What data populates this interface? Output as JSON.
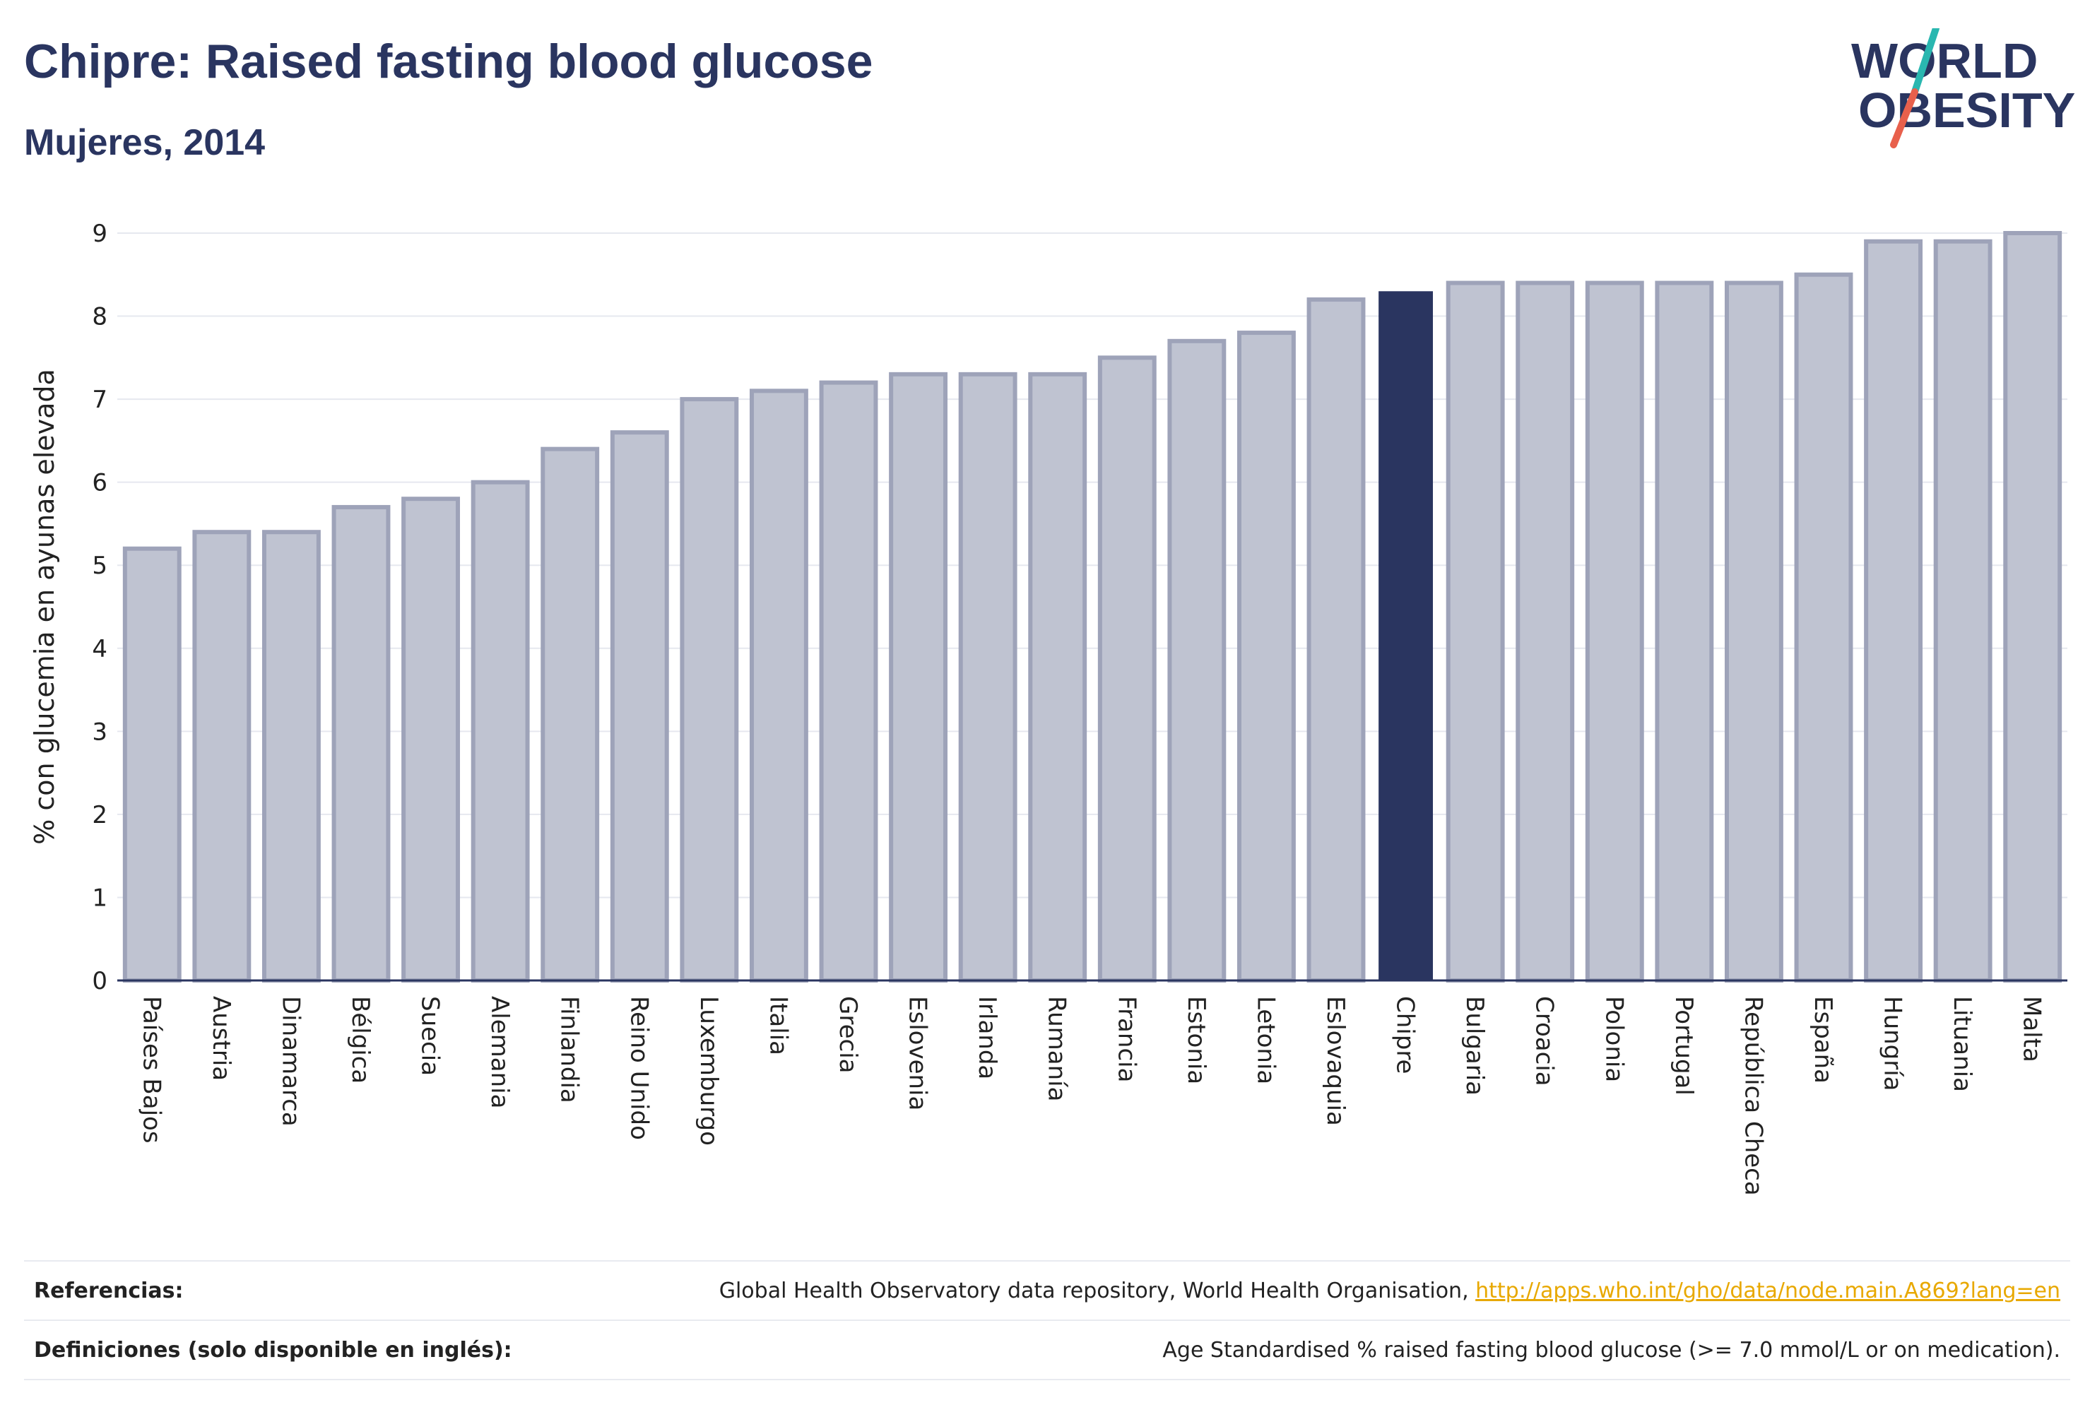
{
  "header": {
    "title": "Chipre: Raised fasting blood glucose",
    "subtitle": "Mujeres, 2014"
  },
  "logo": {
    "line1": "WORLD",
    "line2": "OBESITY",
    "slash_color_top": "#2ab7b0",
    "slash_color_bottom": "#e8604c"
  },
  "colors": {
    "bar": "#bfc3d1",
    "bar_border": "#9ea3b9",
    "highlight": "#2a3560",
    "grid": "#e6e8ef",
    "axis": "#2a3560"
  },
  "chart_data": {
    "type": "bar",
    "ylabel": "% con glucemia en ayunas elevada",
    "xlabel": "",
    "ylim": [
      0,
      9
    ],
    "yticks": [
      0,
      1,
      2,
      3,
      4,
      5,
      6,
      7,
      8,
      9
    ],
    "grid": true,
    "highlight": "Chipre",
    "categories": [
      "Países Bajos",
      "Austria",
      "Dinamarca",
      "Bélgica",
      "Suecia",
      "Alemania",
      "Finlandia",
      "Reino Unido",
      "Luxemburgo",
      "Italia",
      "Grecia",
      "Eslovenia",
      "Irlanda",
      "Rumanía",
      "Francia",
      "Estonia",
      "Letonia",
      "Eslovaquia",
      "Chipre",
      "Bulgaria",
      "Croacia",
      "Polonia",
      "Portugal",
      "República Checa",
      "España",
      "Hungría",
      "Lituania",
      "Malta"
    ],
    "values": [
      5.2,
      5.4,
      5.4,
      5.7,
      5.8,
      6.0,
      6.4,
      6.6,
      7.0,
      7.1,
      7.2,
      7.3,
      7.3,
      7.3,
      7.5,
      7.7,
      7.8,
      8.2,
      8.3,
      8.4,
      8.4,
      8.4,
      8.4,
      8.4,
      8.5,
      8.9,
      8.9,
      9.0
    ]
  },
  "footer": {
    "references_label": "Referencias:",
    "references_text": "Global Health Observatory data repository, World Health Organisation, ",
    "references_link": "http://apps.who.int/gho/data/node.main.A869?lang=en",
    "definitions_label": "Definiciones (solo disponible en inglés):",
    "definitions_text": "Age Standardised % raised fasting blood glucose (>= 7.0 mmol/L or on medication)."
  }
}
